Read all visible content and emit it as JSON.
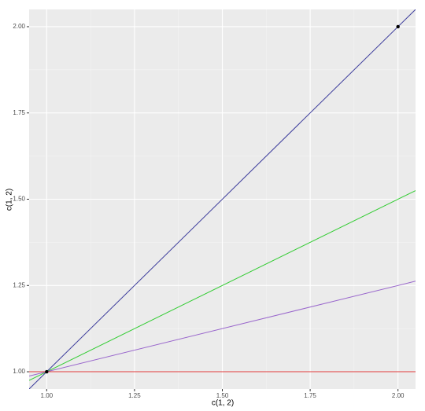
{
  "chart_data": {
    "type": "abline",
    "xlabel": "c(1, 2)",
    "ylabel": "c(1, 2)",
    "xlim": [
      0.95,
      2.05
    ],
    "ylim": [
      0.95,
      2.05
    ],
    "xticks": [
      {
        "value": 1,
        "label": "1.00"
      },
      {
        "value": 1.25,
        "label": "1.25"
      },
      {
        "value": 1.5,
        "label": "1.50"
      },
      {
        "value": 1.75,
        "label": "1.75"
      },
      {
        "value": 2,
        "label": "2.00"
      }
    ],
    "yticks": [
      {
        "value": 1,
        "label": "1.00"
      },
      {
        "value": 1.25,
        "label": "1.25"
      },
      {
        "value": 1.5,
        "label": "1.50"
      },
      {
        "value": 1.75,
        "label": "1.75"
      },
      {
        "value": 2,
        "label": "2.00"
      }
    ],
    "grid": true,
    "points": {
      "x": [
        1,
        2
      ],
      "y": [
        1,
        2
      ],
      "color": "#000000"
    },
    "lines": [
      {
        "slope": 1,
        "intercept": 0,
        "color": "#3c3c9c"
      },
      {
        "slope": 0.5,
        "intercept": 0.5,
        "color": "#33cc33"
      },
      {
        "slope": 0.25,
        "intercept": 0.75,
        "color": "#9966cc"
      },
      {
        "slope": 0,
        "intercept": 1,
        "color": "#e03a3a"
      }
    ]
  }
}
